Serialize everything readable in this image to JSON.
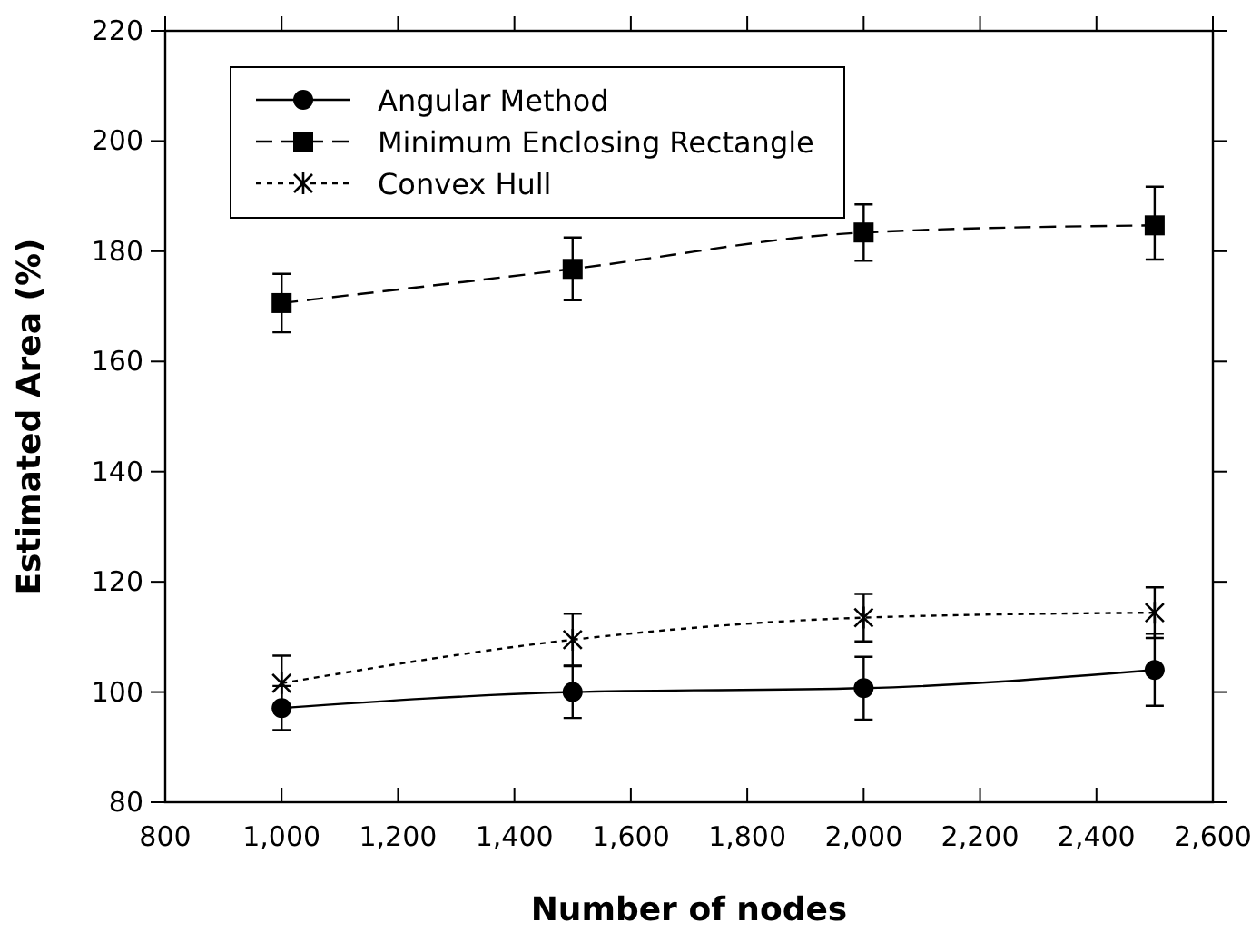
{
  "chart_data": {
    "type": "line",
    "xlabel": "Number of nodes",
    "ylabel": "Estimated Area (%)",
    "xlim": [
      800,
      2600
    ],
    "xticks": [
      {
        "value": 800,
        "label": "800"
      },
      {
        "value": 1000,
        "label": "1,000"
      },
      {
        "value": 1200,
        "label": "1,200"
      },
      {
        "value": 1400,
        "label": "1,400"
      },
      {
        "value": 1600,
        "label": "1,600"
      },
      {
        "value": 1800,
        "label": "1,800"
      },
      {
        "value": 2000,
        "label": "2,000"
      },
      {
        "value": 2200,
        "label": "2,200"
      },
      {
        "value": 2400,
        "label": "2,400"
      },
      {
        "value": 2600,
        "label": "2,600"
      }
    ],
    "ylim": [
      80,
      220
    ],
    "yticks": [
      80,
      100,
      120,
      140,
      160,
      180,
      200,
      220
    ],
    "x": [
      1000,
      1500,
      2000,
      2500
    ],
    "legend": "top left",
    "grid": false,
    "series": [
      {
        "name": "Angular Method",
        "color": "#000000",
        "marker": "circle",
        "line_style": "solid",
        "values": [
          97.1,
          100.0,
          100.7,
          104.0
        ],
        "errors": [
          4,
          4.7,
          5.7,
          [
            97.5,
            110.6
          ]
        ]
      },
      {
        "name": "Minimum Enclosing Rectangle",
        "color": "#000000",
        "marker": "square",
        "line_style": "dashed",
        "values": [
          170.6,
          176.8,
          183.4,
          184.7
        ],
        "errors": [
          5.3,
          5.7,
          5.1,
          [
            178.5,
            191.7
          ]
        ]
      },
      {
        "name": "Convex Hull",
        "color": "#000000",
        "marker": "cross",
        "line_style": "dotted",
        "values": [
          101.6,
          109.5,
          113.5,
          114.4
        ],
        "errors": [
          5,
          4.7,
          4.3,
          4.6
        ]
      }
    ]
  }
}
